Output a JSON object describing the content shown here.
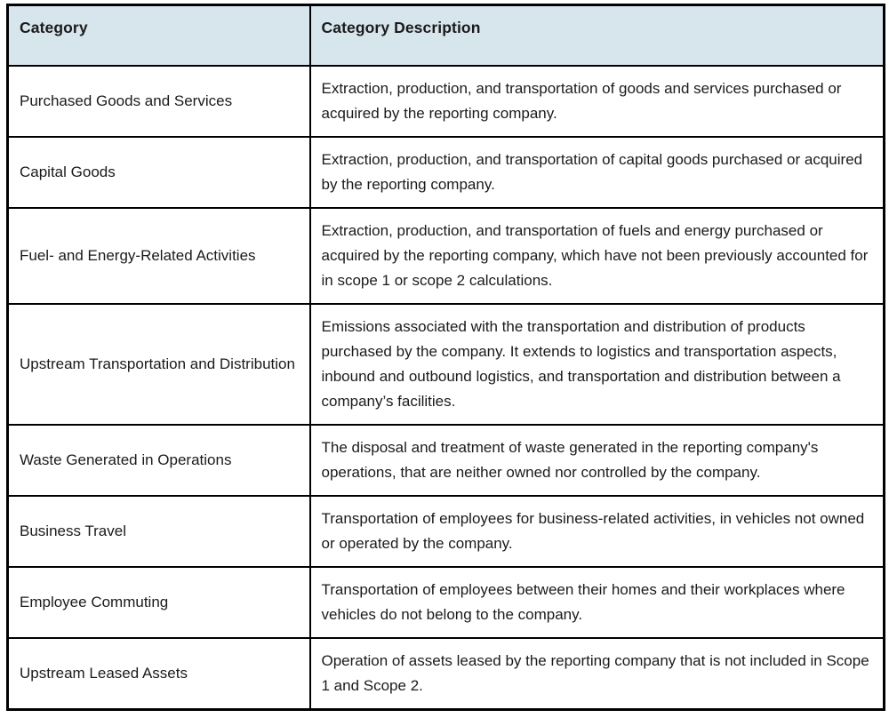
{
  "table": {
    "headers": {
      "category": "Category",
      "description": "Category Description"
    },
    "rows": [
      {
        "category": "Purchased Goods and Services",
        "description": "Extraction, production, and transportation of goods and services purchased or acquired by the reporting company."
      },
      {
        "category": "Capital Goods",
        "description": "Extraction, production, and transportation of capital goods purchased or acquired by the reporting company."
      },
      {
        "category": "Fuel- and Energy-Related Activities",
        "description": "Extraction, production, and transportation of fuels and energy purchased or acquired by the reporting company, which have not been previously accounted for in scope 1 or scope 2 calculations."
      },
      {
        "category": "Upstream Transportation and Distribution",
        "description": "Emissions associated with the transportation and distribution of products purchased by the company. It extends to logistics and transportation aspects, inbound and outbound logistics, and transportation and distribution between a company’s facilities."
      },
      {
        "category": "Waste Generated in Operations",
        "description": "The disposal and treatment of waste generated in the reporting company's operations, that are neither owned nor controlled by the company."
      },
      {
        "category": "Business Travel",
        "description": "Transportation of employees for business-related activities, in vehicles not owned or operated by the company."
      },
      {
        "category": "Employee Commuting",
        "description": "Transportation of employees between their homes and their workplaces where vehicles do not belong to the company."
      },
      {
        "category": "Upstream Leased Assets",
        "description": "Operation of assets leased by the reporting company that is not included in Scope 1 and Scope 2."
      }
    ],
    "colors": {
      "header_bg": "#d7e6ed",
      "border": "#000000",
      "text": "#1b1b1b"
    }
  }
}
